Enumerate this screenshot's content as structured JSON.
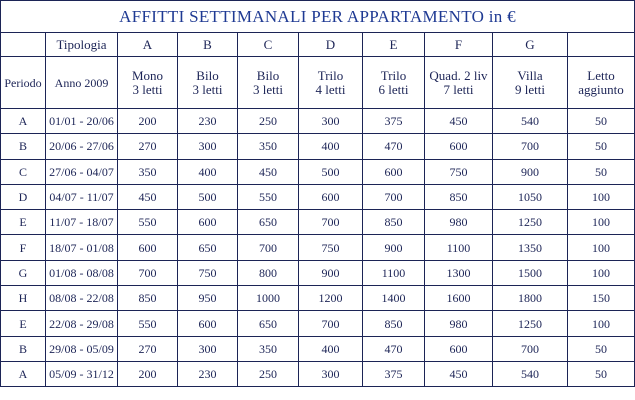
{
  "title": "AFFITTI  SETTIMANALI  PER  APPARTAMENTO in €",
  "table": {
    "tipologia_label": "Tipologia",
    "types": [
      "A",
      "B",
      "C",
      "D",
      "E",
      "F",
      "G"
    ],
    "periodo_label": "Periodo",
    "year_label": "Anno 2009",
    "descriptions": [
      "Mono\n3 letti",
      "Bilo\n3 letti",
      "Bilo\n3 letti",
      "Trilo\n4 letti",
      "Trilo\n6 letti",
      "Quad. 2 liv\n7 letti",
      "Villa\n9 letti",
      "Letto\naggiunto"
    ],
    "rows": [
      {
        "period": "A",
        "dates": "01/01 - 20/06",
        "prices": [
          200,
          230,
          250,
          300,
          375,
          450,
          540,
          50
        ]
      },
      {
        "period": "B",
        "dates": "20/06 - 27/06",
        "prices": [
          270,
          300,
          350,
          400,
          470,
          600,
          700,
          50
        ]
      },
      {
        "period": "C",
        "dates": "27/06 - 04/07",
        "prices": [
          350,
          400,
          450,
          500,
          600,
          750,
          900,
          50
        ]
      },
      {
        "period": "D",
        "dates": "04/07 - 11/07",
        "prices": [
          450,
          500,
          550,
          600,
          700,
          850,
          1050,
          100
        ]
      },
      {
        "period": "E",
        "dates": "11/07 - 18/07",
        "prices": [
          550,
          600,
          650,
          700,
          850,
          980,
          1250,
          100
        ]
      },
      {
        "period": "F",
        "dates": "18/07 - 01/08",
        "prices": [
          600,
          650,
          700,
          750,
          900,
          1100,
          1350,
          100
        ]
      },
      {
        "period": "G",
        "dates": "01/08 - 08/08",
        "prices": [
          700,
          750,
          800,
          900,
          1100,
          1300,
          1500,
          100
        ]
      },
      {
        "period": "H",
        "dates": "08/08 - 22/08",
        "prices": [
          850,
          950,
          1000,
          1200,
          1400,
          1600,
          1800,
          150
        ]
      },
      {
        "period": "E",
        "dates": "22/08 - 29/08",
        "prices": [
          550,
          600,
          650,
          700,
          850,
          980,
          1250,
          100
        ]
      },
      {
        "period": "B",
        "dates": "29/08 - 05/09",
        "prices": [
          270,
          300,
          350,
          400,
          470,
          600,
          700,
          50
        ]
      },
      {
        "period": "A",
        "dates": "05/09 - 31/12",
        "prices": [
          200,
          230,
          250,
          300,
          375,
          450,
          540,
          50
        ]
      }
    ]
  }
}
